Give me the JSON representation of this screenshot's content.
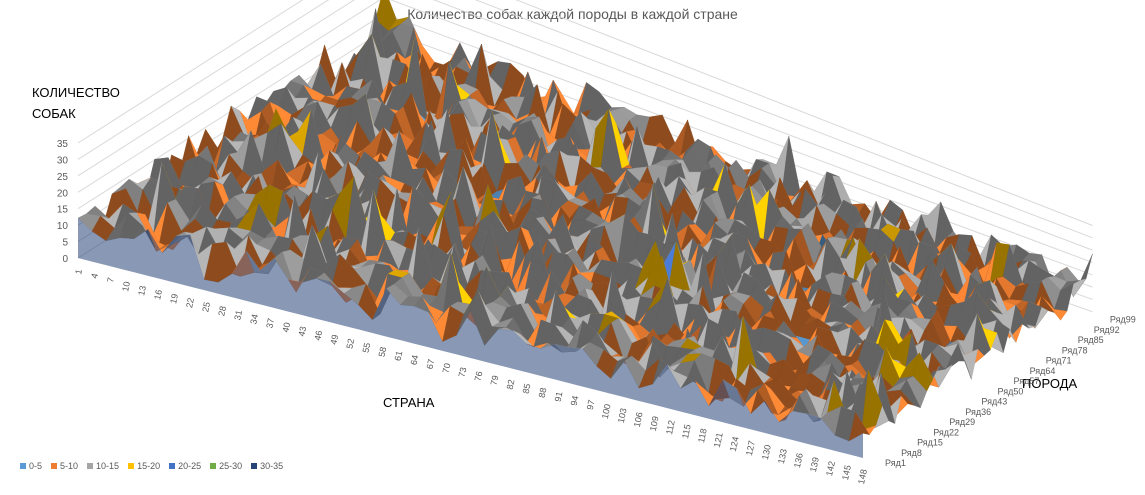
{
  "chart_data": {
    "type": "surface",
    "title": "Количество собак каждой породы в каждой стране",
    "zlabel": "КОЛИЧЕСТВО СОБАК",
    "xlabel": "СТРАНА",
    "ylabel": "ПОРОДА",
    "zlim": [
      0,
      35
    ],
    "z_ticks": [
      "0",
      "5",
      "10",
      "15",
      "20",
      "25",
      "30",
      "35"
    ],
    "x_ticks": [
      "1",
      "4",
      "7",
      "10",
      "13",
      "16",
      "19",
      "22",
      "25",
      "28",
      "31",
      "34",
      "37",
      "40",
      "43",
      "46",
      "49",
      "52",
      "55",
      "58",
      "61",
      "64",
      "67",
      "70",
      "73",
      "76",
      "79",
      "82",
      "85",
      "88",
      "91",
      "94",
      "97",
      "100",
      "103",
      "106",
      "109",
      "112",
      "115",
      "118",
      "121",
      "124",
      "127",
      "130",
      "133",
      "136",
      "139",
      "142",
      "145",
      "148"
    ],
    "y_ticks": [
      "Ряд1",
      "Ряд8",
      "Ряд15",
      "Ряд22",
      "Ряд29",
      "Ряд36",
      "Ряд43",
      "Ряд50",
      "Ряд57",
      "Ряд64",
      "Ряд71",
      "Ряд78",
      "Ряд85",
      "Ряд92",
      "Ряд99"
    ],
    "bands": [
      {
        "name": "0-5",
        "color": "#5b9bd5"
      },
      {
        "name": "5-10",
        "color": "#ed7d31"
      },
      {
        "name": "10-15",
        "color": "#a5a5a5"
      },
      {
        "name": "15-20",
        "color": "#ffc000"
      },
      {
        "name": "20-25",
        "color": "#4472c4"
      },
      {
        "name": "25-30",
        "color": "#70ad47"
      },
      {
        "name": "30-35",
        "color": "#264478"
      }
    ],
    "grid": true,
    "legend_position": "bottom-left"
  }
}
